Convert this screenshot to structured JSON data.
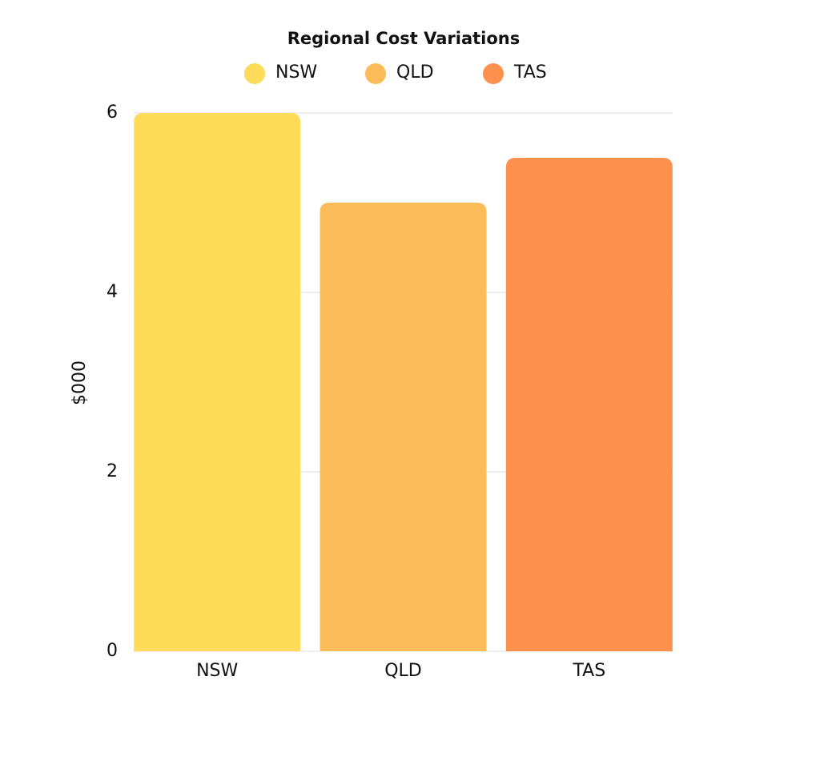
{
  "chart_data": {
    "type": "bar",
    "title": "Regional Cost Variations",
    "y_label": "$000",
    "categories": [
      "NSW",
      "QLD",
      "TAS"
    ],
    "values": [
      6,
      5,
      5.5
    ],
    "colors": [
      "#fedb58",
      "#fdbc5a",
      "#fe914d"
    ],
    "ylim": [
      0,
      6
    ],
    "yticks": [
      0,
      2,
      4,
      6
    ],
    "grid": true,
    "legend": "top"
  }
}
